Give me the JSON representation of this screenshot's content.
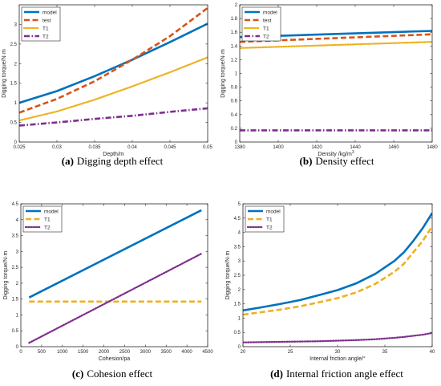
{
  "colors": {
    "model": "#0072BD",
    "test": "#D95319",
    "T1": "#EDB120",
    "T2": "#7E2F8E"
  },
  "chart_data": [
    {
      "type": "line",
      "caption_letter": "(a)",
      "caption_text": "Digging depth effect",
      "xlabel": "Depth/m",
      "ylabel": "Digging torque/N·m",
      "xlim": [
        0.025,
        0.05
      ],
      "ylim": [
        0,
        3.5
      ],
      "xticks": [
        "0.025",
        "0.03",
        "0.035",
        "0.04",
        "0.045",
        "0.05"
      ],
      "yticks": [
        "0",
        "0.5",
        "1",
        "1.5",
        "2",
        "2.5",
        "3"
      ],
      "ytick_values": [
        0,
        0.5,
        1,
        1.5,
        2,
        2.5,
        3
      ],
      "xtick_values": [
        0.025,
        0.03,
        0.035,
        0.04,
        0.045,
        0.05
      ],
      "legend": [
        "model",
        "test",
        "T1",
        "T2"
      ],
      "legend_position": "top-left",
      "series": [
        {
          "name": "model",
          "style": "solid",
          "x": [
            0.025,
            0.03,
            0.035,
            0.04,
            0.045,
            0.05
          ],
          "y": [
            1.0,
            1.3,
            1.68,
            2.1,
            2.55,
            3.02
          ]
        },
        {
          "name": "test",
          "style": "dashed",
          "x": [
            0.025,
            0.03,
            0.035,
            0.04,
            0.045,
            0.05
          ],
          "y": [
            0.75,
            1.1,
            1.55,
            2.1,
            2.7,
            3.42
          ]
        },
        {
          "name": "T1",
          "style": "dotted",
          "x": [
            0.025,
            0.03,
            0.035,
            0.04,
            0.045,
            0.05
          ],
          "y": [
            0.55,
            0.78,
            1.08,
            1.42,
            1.78,
            2.16
          ]
        },
        {
          "name": "T2",
          "style": "dashdot",
          "x": [
            0.025,
            0.03,
            0.035,
            0.04,
            0.045,
            0.05
          ],
          "y": [
            0.42,
            0.5,
            0.59,
            0.67,
            0.77,
            0.86
          ]
        }
      ]
    },
    {
      "type": "line",
      "caption_letter": "(b)",
      "caption_text": "Density effect",
      "xlabel": "Density /kg/m",
      "xlabel_sup": "3",
      "ylabel": "Digging torque/N·m",
      "xlim": [
        1380,
        1480
      ],
      "ylim": [
        0,
        2
      ],
      "xticks": [
        "1380",
        "1400",
        "1420",
        "1440",
        "1460",
        "1480"
      ],
      "xtick_values": [
        1380,
        1400,
        1420,
        1440,
        1460,
        1480
      ],
      "yticks": [
        "0",
        "0.2",
        "0.4",
        "0.6",
        "0.8",
        "1",
        "1.2",
        "1.4",
        "1.6",
        "1.8",
        "2"
      ],
      "ytick_values": [
        0,
        0.2,
        0.4,
        0.6,
        0.8,
        1,
        1.2,
        1.4,
        1.6,
        1.8,
        2
      ],
      "legend": [
        "model",
        "test",
        "T1",
        "T2"
      ],
      "legend_position": "top-left",
      "series": [
        {
          "name": "model",
          "style": "solid",
          "x": [
            1380,
            1480
          ],
          "y": [
            1.53,
            1.62
          ]
        },
        {
          "name": "test",
          "style": "dashed",
          "x": [
            1380,
            1480
          ],
          "y": [
            1.46,
            1.57
          ]
        },
        {
          "name": "T1",
          "style": "dotted",
          "x": [
            1380,
            1480
          ],
          "y": [
            1.37,
            1.46
          ]
        },
        {
          "name": "T2",
          "style": "dashdot",
          "x": [
            1380,
            1480
          ],
          "y": [
            0.17,
            0.17
          ]
        }
      ]
    },
    {
      "type": "line",
      "caption_letter": "(c)",
      "caption_text": "Cohesion effect",
      "xlabel": "Cohesion/pa",
      "ylabel": "Digging torque/N·m",
      "xlim": [
        0,
        4500
      ],
      "ylim": [
        0,
        4.5
      ],
      "xticks": [
        "0",
        "500",
        "1000",
        "1500",
        "2000",
        "2500",
        "3000",
        "3500",
        "4000",
        "4500"
      ],
      "xtick_values": [
        0,
        500,
        1000,
        1500,
        2000,
        2500,
        3000,
        3500,
        4000,
        4500
      ],
      "yticks": [
        "0",
        "0.5",
        "1",
        "1.5",
        "2",
        "2.5",
        "3",
        "3.5",
        "4",
        "4.5"
      ],
      "ytick_values": [
        0,
        0.5,
        1,
        1.5,
        2,
        2.5,
        3,
        3.5,
        4,
        4.5
      ],
      "legend": [
        "model",
        "T1",
        "T2"
      ],
      "legend_position": "top-left",
      "series": [
        {
          "name": "model",
          "style": "solid",
          "x": [
            200,
            4350
          ],
          "y": [
            1.55,
            4.3
          ]
        },
        {
          "name": "T1",
          "style": "dashed",
          "x": [
            200,
            4350
          ],
          "y": [
            1.42,
            1.42
          ]
        },
        {
          "name": "T2",
          "style": "dotted",
          "x": [
            200,
            4350
          ],
          "y": [
            0.12,
            2.93
          ]
        }
      ]
    },
    {
      "type": "line",
      "caption_letter": "(d)",
      "caption_text": "Internal friction angle effect",
      "xlabel": "Internal friction angle/°",
      "ylabel": "Digging torque/N·m",
      "xlim": [
        20,
        40
      ],
      "ylim": [
        0,
        5
      ],
      "xticks": [
        "20",
        "25",
        "30",
        "35",
        "40"
      ],
      "xtick_values": [
        20,
        25,
        30,
        35,
        40
      ],
      "yticks": [
        "0",
        "0.5",
        "1",
        "1.5",
        "2",
        "2.5",
        "3",
        "3.5",
        "4",
        "4.5",
        "5"
      ],
      "ytick_values": [
        0,
        0.5,
        1,
        1.5,
        2,
        2.5,
        3,
        3.5,
        4,
        4.5,
        5
      ],
      "legend": [
        "model",
        "T1",
        "T2"
      ],
      "legend_position": "top-left",
      "series": [
        {
          "name": "model",
          "style": "solid",
          "x": [
            20,
            22,
            24,
            26,
            28,
            30,
            32,
            34,
            36,
            37,
            38,
            39,
            40
          ],
          "y": [
            1.27,
            1.38,
            1.5,
            1.63,
            1.8,
            1.98,
            2.22,
            2.55,
            3.0,
            3.3,
            3.7,
            4.15,
            4.68
          ]
        },
        {
          "name": "T1",
          "style": "dashed",
          "x": [
            20,
            22,
            24,
            26,
            28,
            30,
            32,
            34,
            36,
            37,
            38,
            39,
            40
          ],
          "y": [
            1.12,
            1.21,
            1.3,
            1.41,
            1.55,
            1.7,
            1.9,
            2.2,
            2.62,
            2.9,
            3.3,
            3.7,
            4.22
          ]
        },
        {
          "name": "T2",
          "style": "dotted",
          "x": [
            20,
            22,
            24,
            26,
            28,
            30,
            32,
            34,
            36,
            37,
            38,
            39,
            40
          ],
          "y": [
            0.15,
            0.16,
            0.17,
            0.18,
            0.19,
            0.21,
            0.23,
            0.26,
            0.31,
            0.34,
            0.38,
            0.42,
            0.48
          ]
        }
      ]
    }
  ]
}
